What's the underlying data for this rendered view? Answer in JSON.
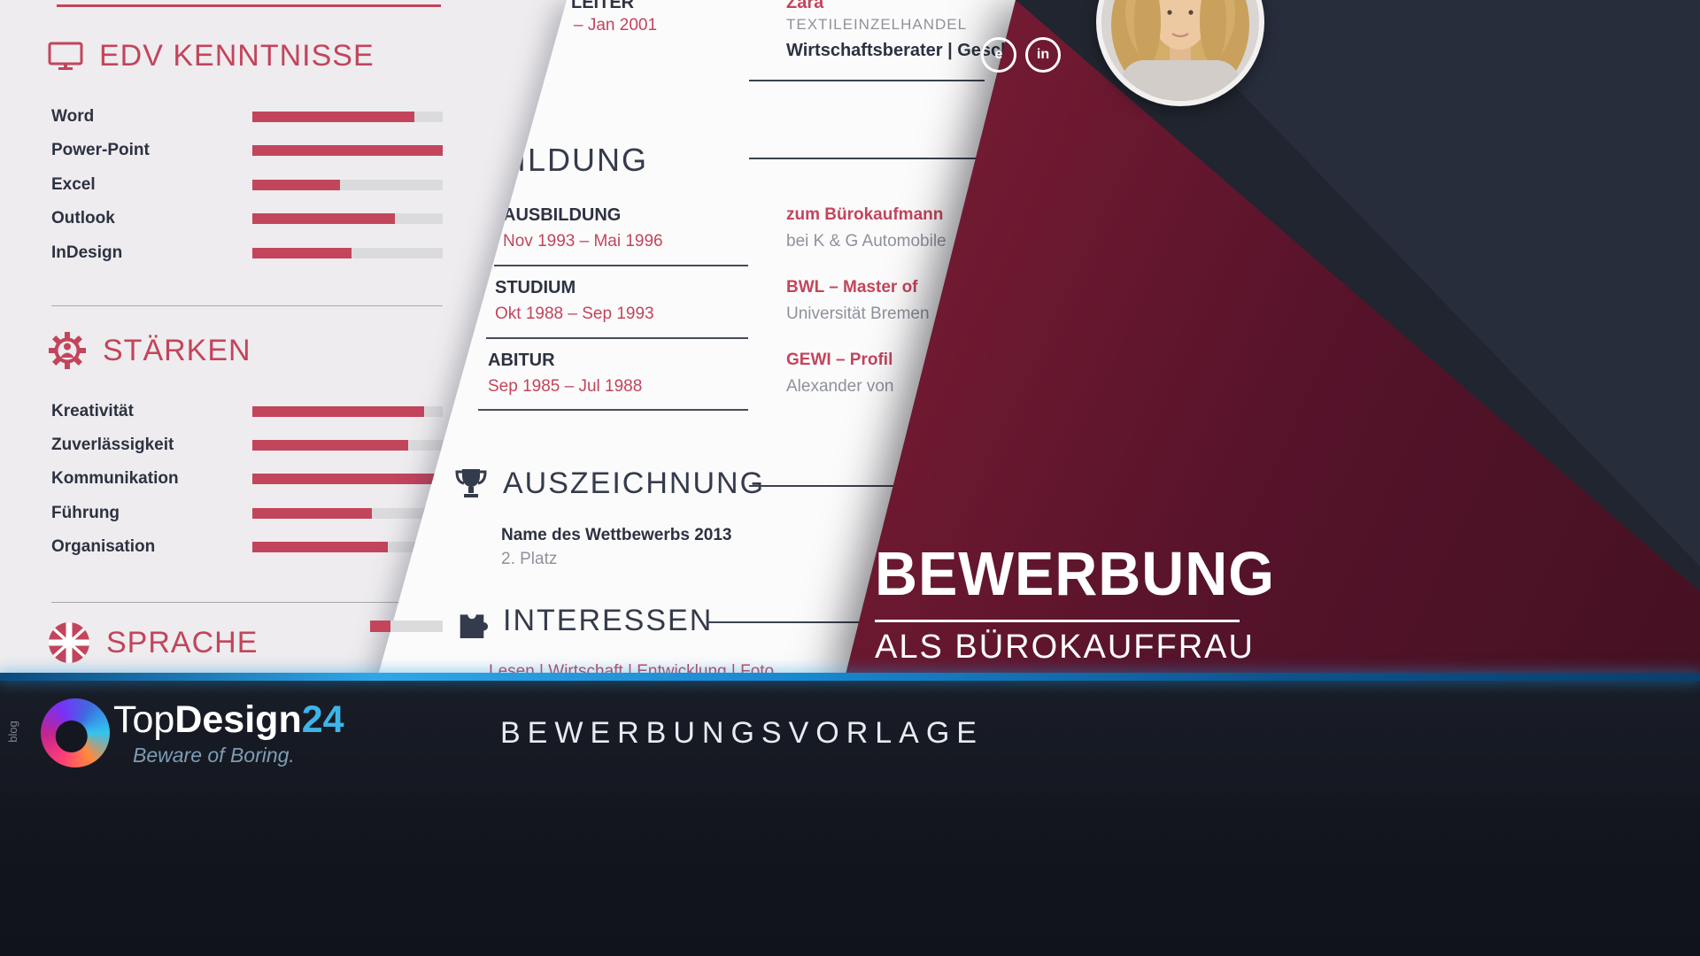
{
  "colors": {
    "accent": "#c2455c",
    "dark_text": "#2d3242",
    "gray_text": "#8d929c",
    "panel_left_bg": "#eeecee",
    "panel_mid_bg": "#fcfbfb",
    "navy_bg": "#20252f",
    "navy_light": "#272d3b",
    "maroon_light": "#9e2742",
    "maroon_dark": "#411020",
    "footer_blue": "#1d8fd8",
    "bar_track": "#dbdbdd"
  },
  "left_panel": {
    "sections": [
      {
        "title": "EDV KENNTNISSE",
        "icon": "monitor-icon",
        "skills": [
          {
            "label": "Word",
            "percent": 85
          },
          {
            "label": "Power-Point",
            "percent": 100
          },
          {
            "label": "Excel",
            "percent": 46
          },
          {
            "label": "Outlook",
            "percent": 75
          },
          {
            "label": "InDesign",
            "percent": 52
          }
        ]
      },
      {
        "title": "STÄRKEN",
        "icon": "gear-icon",
        "skills": [
          {
            "label": "Kreativität",
            "percent": 90
          },
          {
            "label": "Zuverlässigkeit",
            "percent": 82
          },
          {
            "label": "Kommunikation",
            "percent": 96
          },
          {
            "label": "Führung",
            "percent": 63
          },
          {
            "label": "Organisation",
            "percent": 71
          }
        ]
      },
      {
        "title": "SPRACHE",
        "icon": "uk-flag-icon",
        "partial_skill": {
          "percent": 28
        }
      }
    ]
  },
  "middle_panel": {
    "experience": {
      "title_fragment": "LEITER",
      "period_fragment": "– Jan 2001",
      "company": "Zara",
      "industry": "TEXTILEINZELHANDEL",
      "role": "Wirtschaftsberater | Geschäfts"
    },
    "education": {
      "title": "BILDUNG",
      "entries": [
        {
          "label": "AUSBILDUNG",
          "period": "Nov 1993 – Mai 1996",
          "degree": "zum Bürokaufmann",
          "institution": "bei K & G Automobile"
        },
        {
          "label": "STUDIUM",
          "period": "Okt 1988 – Sep 1993",
          "degree": "BWL – Master of",
          "institution": "Universität Bremen"
        },
        {
          "label": "ABITUR",
          "period": "Sep 1985 – Jul 1988",
          "degree": "GEWI – Profil",
          "institution": "Alexander von"
        }
      ]
    },
    "award": {
      "title": "AUSZEICHNUNG",
      "icon": "trophy-icon",
      "name": "Name des Wettbewerbs 2013",
      "rank": "2. Platz"
    },
    "interests": {
      "title": "INTERESSEN",
      "icon": "puzzle-icon",
      "items": "Lesen | Wirtschaft | Entwicklung | Foto"
    }
  },
  "right_panel": {
    "social_icons": [
      {
        "label": "e"
      },
      {
        "label": "in"
      }
    ],
    "title": "BEWERBUNG",
    "subtitle": "ALS BÜROKAUFFRAU"
  },
  "footer": {
    "blog_label": "blog",
    "brand_prefix": "Top",
    "brand_mid": "Design",
    "brand_number": "24",
    "tagline": "Beware of Boring.",
    "center_title": "BEWERBUNGSVORLAGE"
  }
}
